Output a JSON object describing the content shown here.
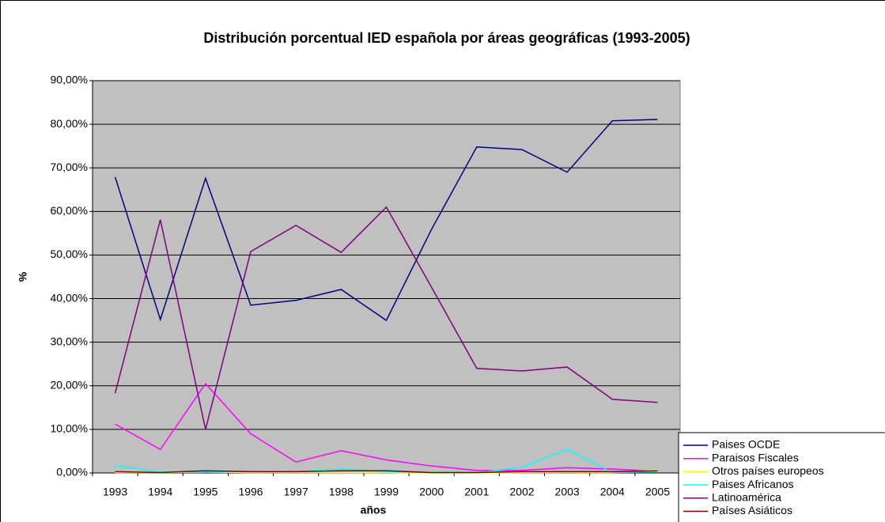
{
  "chart_data": {
    "type": "line",
    "title": "Distribución porcentual IED española por áreas geográficas (1993-2005)",
    "x_label": "años",
    "y_label": "%",
    "categories": [
      "1993",
      "1994",
      "1995",
      "1996",
      "1997",
      "1998",
      "1999",
      "2000",
      "2001",
      "2002",
      "2003",
      "2004",
      "2005"
    ],
    "series": [
      {
        "name": "Paises OCDE",
        "color": "#000080",
        "values": [
          67.9,
          35.2,
          67.6,
          38.5,
          39.6,
          42.1,
          35,
          55.9,
          74.8,
          74.2,
          69,
          80.8,
          81.1
        ]
      },
      {
        "name": "Paraisos Fiscales",
        "color": "#ff00ff",
        "values": [
          11.2,
          5.4,
          20.5,
          9,
          2.5,
          5.1,
          3,
          1.6,
          0.6,
          0.6,
          1.2,
          0.9,
          0.4
        ]
      },
      {
        "name": "Otros países europeos",
        "color": "#ffff00",
        "values": [
          0.1,
          0.1,
          0.2,
          0.1,
          0.1,
          0.1,
          0.1,
          0,
          0,
          0.1,
          0.1,
          0.1,
          0.7
        ]
      },
      {
        "name": "Paises Africanos",
        "color": "#00ffff",
        "values": [
          1.7,
          0.2,
          0.3,
          0.4,
          0.3,
          0.9,
          0.3,
          0.1,
          0.1,
          1.3,
          5.4,
          0.1,
          0.3
        ]
      },
      {
        "name": "Latinoamérica",
        "color": "#800080",
        "values": [
          18.3,
          58.1,
          10,
          50.8,
          56.8,
          50.6,
          61,
          42.6,
          24,
          23.4,
          24.3,
          16.9,
          16.2
        ]
      },
      {
        "name": "Países Asiáticos",
        "color": "#800000",
        "values": [
          0.3,
          0.1,
          0.5,
          0.3,
          0.3,
          0.5,
          0.5,
          0.1,
          0.1,
          0.3,
          0.3,
          0.3,
          0.5
        ]
      }
    ],
    "ylim": [
      0,
      90
    ],
    "yticks": [
      {
        "value": 0,
        "label": "0,00%"
      },
      {
        "value": 10,
        "label": "10,00%"
      },
      {
        "value": 20,
        "label": "20,00%"
      },
      {
        "value": 30,
        "label": "30,00%"
      },
      {
        "value": 40,
        "label": "40,00%"
      },
      {
        "value": 50,
        "label": "50,00%"
      },
      {
        "value": 60,
        "label": "60,00%"
      },
      {
        "value": 70,
        "label": "70,00%"
      },
      {
        "value": 80,
        "label": "80,00%"
      },
      {
        "value": 90,
        "label": "90,00%"
      }
    ],
    "grid": true,
    "plot_background": "#c0c0c0",
    "legend": "bottom-right"
  }
}
